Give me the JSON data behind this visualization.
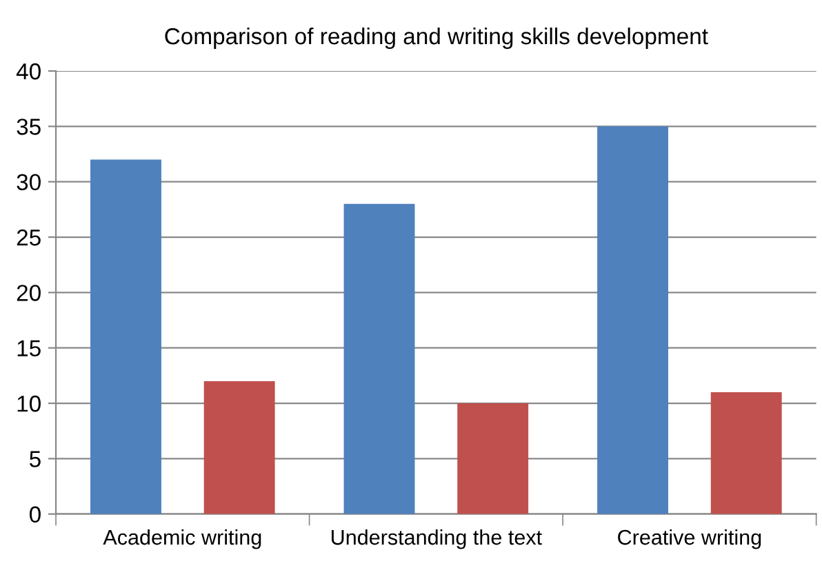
{
  "chart_data": {
    "type": "bar",
    "title": "Comparison of reading and writing skills development",
    "categories": [
      "Academic writing",
      "Understanding the text",
      "Creative writing"
    ],
    "series": [
      {
        "color": "#4f81bd",
        "values": [
          32,
          28,
          35
        ]
      },
      {
        "color": "#c0504d",
        "values": [
          12,
          10,
          11
        ]
      }
    ],
    "ylim": [
      0,
      40
    ],
    "yticks": [
      0,
      5,
      10,
      15,
      20,
      25,
      30,
      35,
      40
    ],
    "grid": "y"
  }
}
